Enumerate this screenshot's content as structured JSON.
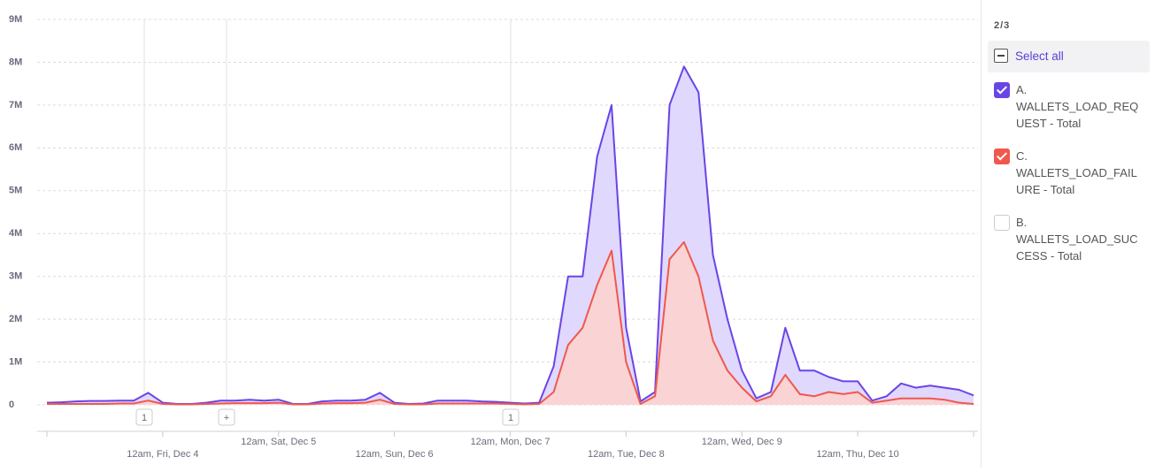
{
  "chart_data": {
    "type": "area",
    "categories": [
      null,
      null,
      null,
      null,
      null,
      null,
      null,
      null,
      "12am, Fri, Dec 4",
      null,
      null,
      null,
      null,
      null,
      null,
      null,
      "12am, Sat, Dec 5",
      null,
      null,
      null,
      null,
      null,
      null,
      null,
      "12am, Sun, Dec 6",
      null,
      null,
      null,
      null,
      null,
      null,
      null,
      "12am, Mon, Dec 7",
      null,
      null,
      null,
      null,
      null,
      null,
      null,
      "12am, Tue, Dec 8",
      null,
      null,
      null,
      null,
      null,
      null,
      null,
      "12am, Wed, Dec 9",
      null,
      null,
      null,
      null,
      null,
      null,
      null,
      "12am, Thu, Dec 10",
      null,
      null,
      null,
      null,
      null,
      null,
      null,
      null
    ],
    "series": [
      {
        "name": "A. WALLETS_LOAD_REQUEST - Total",
        "color": "#6a45e6",
        "fill": "#ddd4fd",
        "values": [
          50000,
          60000,
          80000,
          90000,
          90000,
          100000,
          100000,
          280000,
          50000,
          20000,
          20000,
          50000,
          100000,
          100000,
          120000,
          100000,
          120000,
          20000,
          20000,
          80000,
          100000,
          100000,
          120000,
          280000,
          50000,
          20000,
          30000,
          100000,
          100000,
          100000,
          80000,
          70000,
          50000,
          30000,
          50000,
          900000,
          3000000,
          3000000,
          5800000,
          7000000,
          1800000,
          80000,
          300000,
          7000000,
          7900000,
          7300000,
          3500000,
          2000000,
          800000,
          150000,
          300000,
          1800000,
          800000,
          800000,
          650000,
          550000,
          550000,
          100000,
          200000,
          500000,
          400000,
          450000,
          400000,
          350000,
          220000
        ]
      },
      {
        "name": "C. WALLETS_LOAD_FAILURE - Total",
        "color": "#f0584d",
        "fill": "#fdd3d0",
        "values": [
          20000,
          20000,
          20000,
          20000,
          20000,
          30000,
          30000,
          100000,
          20000,
          10000,
          10000,
          20000,
          30000,
          40000,
          40000,
          40000,
          50000,
          10000,
          10000,
          30000,
          40000,
          40000,
          50000,
          120000,
          20000,
          10000,
          10000,
          30000,
          30000,
          30000,
          30000,
          30000,
          20000,
          10000,
          20000,
          300000,
          1400000,
          1800000,
          2800000,
          3600000,
          1000000,
          20000,
          200000,
          3400000,
          3800000,
          3000000,
          1500000,
          800000,
          400000,
          80000,
          200000,
          700000,
          250000,
          200000,
          300000,
          250000,
          300000,
          50000,
          100000,
          150000,
          150000,
          150000,
          120000,
          50000,
          20000
        ]
      }
    ],
    "ylim": [
      0,
      9000000
    ],
    "yticks": [
      {
        "value": 0,
        "label": "0"
      },
      {
        "value": 1000000,
        "label": "1M"
      },
      {
        "value": 2000000,
        "label": "2M"
      },
      {
        "value": 3000000,
        "label": "3M"
      },
      {
        "value": 4000000,
        "label": "4M"
      },
      {
        "value": 5000000,
        "label": "5M"
      },
      {
        "value": 6000000,
        "label": "6M"
      },
      {
        "value": 7000000,
        "label": "7M"
      },
      {
        "value": 8000000,
        "label": "8M"
      },
      {
        "value": 9000000,
        "label": "9M"
      }
    ],
    "grid": true,
    "annotations": [
      "1",
      "+",
      "1"
    ]
  },
  "legend": {
    "count": "2/3",
    "select_all": "Select all",
    "unselected": [
      "B. WALLETS_LOAD_SUCCESS - Total"
    ]
  }
}
